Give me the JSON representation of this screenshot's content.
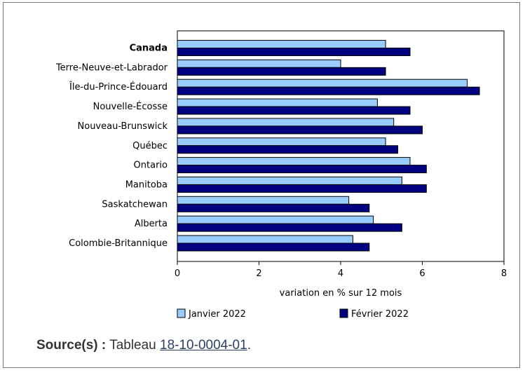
{
  "chart_data": {
    "type": "bar",
    "orientation": "horizontal",
    "categories": [
      "Canada",
      "Terre-Neuve-et-Labrador",
      "Île-du-Prince-Édouard",
      "Nouvelle-Écosse",
      "Nouveau-Brunswick",
      "Québec",
      "Ontario",
      "Manitoba",
      "Saskatchewan",
      "Alberta",
      "Colombie-Britannique"
    ],
    "bold_categories": [
      "Canada"
    ],
    "series": [
      {
        "name": "Janvier 2022",
        "color": "#99ccff",
        "values": [
          5.1,
          4.0,
          7.1,
          4.9,
          5.3,
          5.1,
          5.7,
          5.5,
          4.2,
          4.8,
          4.3
        ]
      },
      {
        "name": "Février 2022",
        "color": "#000080",
        "values": [
          5.7,
          5.1,
          7.4,
          5.7,
          6.0,
          5.4,
          6.1,
          6.1,
          4.7,
          5.5,
          4.7
        ]
      }
    ],
    "xlabel": "variation en % sur 12 mois",
    "xlim": [
      0,
      8
    ],
    "xticks": [
      "0",
      "2",
      "4",
      "6",
      "8"
    ],
    "grid": false,
    "legend_position": "bottom"
  },
  "source": {
    "label": "Source(s) :",
    "text_before": "Tableau",
    "link_text": "18-10-0004-01",
    "text_after": "."
  }
}
